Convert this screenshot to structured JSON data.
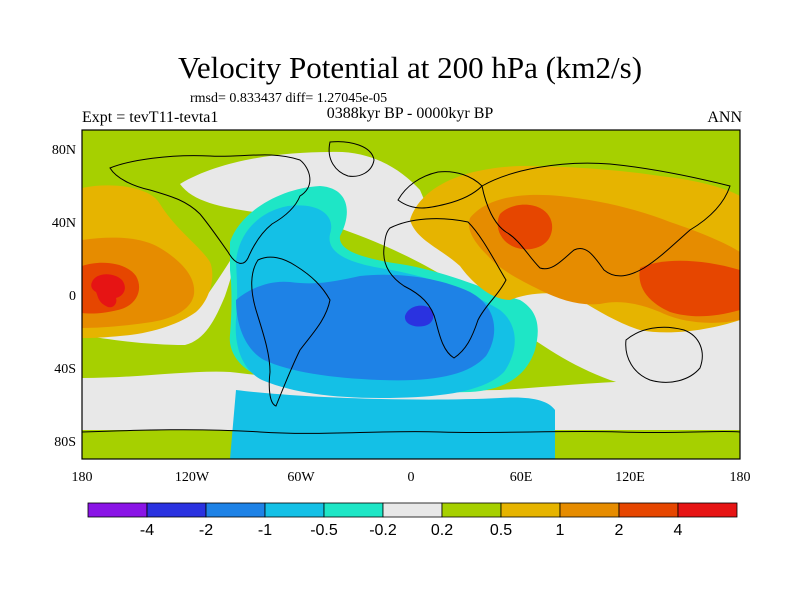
{
  "header": {
    "title": "Velocity Potential at 200 hPa (km2/s)",
    "stats": "rmsd= 0.833437 diff= 1.27045e-05",
    "period": "0388kyr BP - 0000kyr BP",
    "experiment": "Expt = tevT11-tevta1",
    "season": "ANN"
  },
  "map": {
    "projection": "cylindrical equidistant",
    "lon_range": [
      -180,
      180
    ],
    "lat_range": [
      -90,
      90
    ],
    "lat_ticks": [
      {
        "value": 80,
        "label": "80N"
      },
      {
        "value": 40,
        "label": "40N"
      },
      {
        "value": 0,
        "label": "0"
      },
      {
        "value": -40,
        "label": "40S"
      },
      {
        "value": -80,
        "label": "80S"
      }
    ],
    "lon_ticks": [
      {
        "value": -180,
        "label": "180"
      },
      {
        "value": -120,
        "label": "120W"
      },
      {
        "value": -60,
        "label": "60W"
      },
      {
        "value": 0,
        "label": "0"
      },
      {
        "value": 60,
        "label": "60E"
      },
      {
        "value": 120,
        "label": "120E"
      },
      {
        "value": 180,
        "label": "180"
      }
    ],
    "background_level_color": "#a6d000"
  },
  "colorbar": {
    "colors": [
      "#8a14e6",
      "#2a32e0",
      "#1e82e6",
      "#14c0e6",
      "#1ee6c6",
      "#e8e8e8",
      "#a6d000",
      "#e6b400",
      "#e68c00",
      "#e64600",
      "#e61414"
    ],
    "levels": [
      "-4",
      "-2",
      "-1",
      "-0.5",
      "-0.2",
      "0.2",
      "0.5",
      "1",
      "2",
      "4"
    ]
  }
}
